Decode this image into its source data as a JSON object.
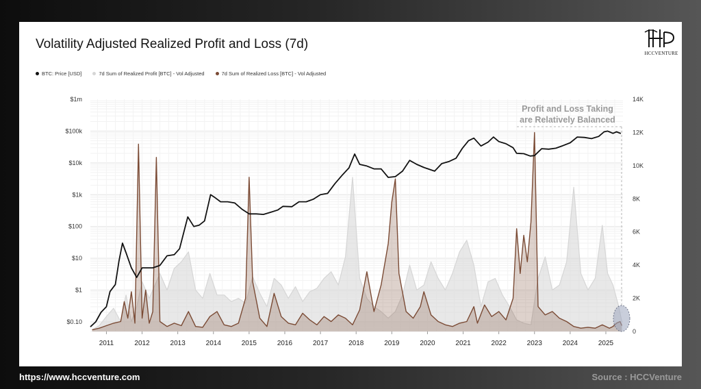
{
  "header": {
    "title": "Volatility Adjusted Realized Profit and Loss (7d)"
  },
  "brand": {
    "logo_text": "HCCVENTURE"
  },
  "legend": {
    "items": [
      {
        "label": "BTC: Price [USD]",
        "color": "#111111"
      },
      {
        "label": "7d Sum of Realized Profit [BTC] - Vol Adjusted",
        "color": "#d6d6d6"
      },
      {
        "label": "7d Sum of Realized Loss [BTC] - Vol Adjusted",
        "color": "#7a4a34"
      }
    ]
  },
  "annotation": {
    "line1": "Profit and Loss Taking",
    "line2": "are Relatively Balanced"
  },
  "footer": {
    "url": "https://www.hccventure.com",
    "source": "Source : HCCVenture"
  },
  "chart_data": {
    "type": "line",
    "title": "Volatility Adjusted Realized Profit and Loss (7d)",
    "x_range": [
      2010.55,
      2025.48
    ],
    "x_ticks": [
      2011,
      2012,
      2013,
      2014,
      2015,
      2016,
      2017,
      2018,
      2019,
      2020,
      2021,
      2022,
      2023,
      2024,
      2025
    ],
    "x_tick_labels": [
      "2011",
      "2012",
      "2013",
      "2014",
      "2015",
      "2016",
      "2017",
      "2018",
      "2019",
      "2020",
      "2021",
      "2022",
      "2023",
      "2024",
      "2025"
    ],
    "y_left": {
      "scale": "log",
      "range": [
        0.05,
        1000000
      ],
      "ticks": [
        0.1,
        1,
        10,
        100,
        1000,
        10000,
        100000,
        1000000
      ],
      "tick_labels": [
        "$0.10",
        "$1",
        "$10",
        "$100",
        "$1k",
        "$10k",
        "$100k",
        "$1m"
      ]
    },
    "y_right": {
      "scale": "linear",
      "range": [
        0,
        14000
      ],
      "ticks": [
        0,
        2000,
        4000,
        6000,
        8000,
        10000,
        12000,
        14000
      ],
      "tick_labels": [
        "0",
        "2K",
        "4K",
        "6K",
        "8K",
        "10K",
        "12K",
        "14K"
      ]
    },
    "grid": true,
    "series": [
      {
        "name": "BTC: Price [USD]",
        "axis": "left",
        "color": "#111111",
        "points": [
          [
            2010.55,
            0.07
          ],
          [
            2010.7,
            0.1
          ],
          [
            2010.85,
            0.2
          ],
          [
            2011.0,
            0.3
          ],
          [
            2011.1,
            0.9
          ],
          [
            2011.25,
            1.5
          ],
          [
            2011.35,
            8
          ],
          [
            2011.45,
            30
          ],
          [
            2011.55,
            15
          ],
          [
            2011.7,
            5
          ],
          [
            2011.85,
            2.5
          ],
          [
            2012.0,
            5
          ],
          [
            2012.3,
            5
          ],
          [
            2012.5,
            6
          ],
          [
            2012.7,
            12
          ],
          [
            2012.9,
            13
          ],
          [
            2013.05,
            20
          ],
          [
            2013.2,
            90
          ],
          [
            2013.28,
            200
          ],
          [
            2013.45,
            100
          ],
          [
            2013.6,
            110
          ],
          [
            2013.75,
            150
          ],
          [
            2013.92,
            1000
          ],
          [
            2014.05,
            800
          ],
          [
            2014.2,
            600
          ],
          [
            2014.4,
            600
          ],
          [
            2014.6,
            550
          ],
          [
            2014.8,
            350
          ],
          [
            2015.0,
            250
          ],
          [
            2015.2,
            250
          ],
          [
            2015.4,
            240
          ],
          [
            2015.6,
            280
          ],
          [
            2015.8,
            330
          ],
          [
            2015.95,
            430
          ],
          [
            2016.2,
            420
          ],
          [
            2016.4,
            600
          ],
          [
            2016.6,
            600
          ],
          [
            2016.8,
            720
          ],
          [
            2017.0,
            1000
          ],
          [
            2017.2,
            1100
          ],
          [
            2017.4,
            2200
          ],
          [
            2017.6,
            4000
          ],
          [
            2017.8,
            7000
          ],
          [
            2017.96,
            19000
          ],
          [
            2018.1,
            9000
          ],
          [
            2018.3,
            8000
          ],
          [
            2018.5,
            6500
          ],
          [
            2018.7,
            6500
          ],
          [
            2018.9,
            3500
          ],
          [
            2019.1,
            3700
          ],
          [
            2019.3,
            5500
          ],
          [
            2019.5,
            12000
          ],
          [
            2019.7,
            9000
          ],
          [
            2019.9,
            7200
          ],
          [
            2020.2,
            5500
          ],
          [
            2020.4,
            9500
          ],
          [
            2020.6,
            11000
          ],
          [
            2020.8,
            14000
          ],
          [
            2020.98,
            29000
          ],
          [
            2021.15,
            50000
          ],
          [
            2021.3,
            60000
          ],
          [
            2021.5,
            34000
          ],
          [
            2021.7,
            45000
          ],
          [
            2021.85,
            65000
          ],
          [
            2022.0,
            47000
          ],
          [
            2022.2,
            40000
          ],
          [
            2022.4,
            30000
          ],
          [
            2022.5,
            20000
          ],
          [
            2022.7,
            19500
          ],
          [
            2022.88,
            16500
          ],
          [
            2023.0,
            17000
          ],
          [
            2023.2,
            28000
          ],
          [
            2023.4,
            27000
          ],
          [
            2023.6,
            29000
          ],
          [
            2023.8,
            35000
          ],
          [
            2024.0,
            43000
          ],
          [
            2024.2,
            65000
          ],
          [
            2024.4,
            63000
          ],
          [
            2024.6,
            58000
          ],
          [
            2024.8,
            68000
          ],
          [
            2024.95,
            95000
          ],
          [
            2025.05,
            100000
          ],
          [
            2025.2,
            85000
          ],
          [
            2025.3,
            95000
          ],
          [
            2025.42,
            84000
          ]
        ]
      },
      {
        "name": "7d Sum of Realized Profit [BTC] - Vol Adjusted",
        "axis": "right",
        "color": "#d6d6d6",
        "points": [
          [
            2010.6,
            100
          ],
          [
            2010.8,
            350
          ],
          [
            2011.0,
            900
          ],
          [
            2011.2,
            1400
          ],
          [
            2011.4,
            600
          ],
          [
            2011.55,
            2200
          ],
          [
            2011.7,
            600
          ],
          [
            2011.85,
            1500
          ],
          [
            2012.0,
            3000
          ],
          [
            2012.2,
            2000
          ],
          [
            2012.5,
            3500
          ],
          [
            2012.7,
            2500
          ],
          [
            2012.9,
            3800
          ],
          [
            2013.1,
            4200
          ],
          [
            2013.3,
            4800
          ],
          [
            2013.5,
            2500
          ],
          [
            2013.7,
            2000
          ],
          [
            2013.9,
            3500
          ],
          [
            2014.1,
            2200
          ],
          [
            2014.3,
            2200
          ],
          [
            2014.5,
            1800
          ],
          [
            2014.7,
            2000
          ],
          [
            2014.9,
            1700
          ],
          [
            2015.1,
            3300
          ],
          [
            2015.3,
            2300
          ],
          [
            2015.5,
            1500
          ],
          [
            2015.7,
            3200
          ],
          [
            2015.9,
            2800
          ],
          [
            2016.1,
            2000
          ],
          [
            2016.3,
            2700
          ],
          [
            2016.5,
            1800
          ],
          [
            2016.7,
            2400
          ],
          [
            2016.9,
            2600
          ],
          [
            2017.1,
            3200
          ],
          [
            2017.3,
            3600
          ],
          [
            2017.5,
            2800
          ],
          [
            2017.7,
            4500
          ],
          [
            2017.9,
            9300
          ],
          [
            2018.1,
            3200
          ],
          [
            2018.3,
            2000
          ],
          [
            2018.5,
            1500
          ],
          [
            2018.7,
            1200
          ],
          [
            2018.9,
            800
          ],
          [
            2019.1,
            1200
          ],
          [
            2019.3,
            2200
          ],
          [
            2019.5,
            4000
          ],
          [
            2019.7,
            2500
          ],
          [
            2019.9,
            2800
          ],
          [
            2020.1,
            4200
          ],
          [
            2020.3,
            3200
          ],
          [
            2020.5,
            2500
          ],
          [
            2020.7,
            3500
          ],
          [
            2020.9,
            4800
          ],
          [
            2021.1,
            5500
          ],
          [
            2021.3,
            4000
          ],
          [
            2021.5,
            1500
          ],
          [
            2021.7,
            3000
          ],
          [
            2021.9,
            3200
          ],
          [
            2022.1,
            2200
          ],
          [
            2022.3,
            1500
          ],
          [
            2022.5,
            700
          ],
          [
            2022.7,
            500
          ],
          [
            2022.9,
            400
          ],
          [
            2023.1,
            3200
          ],
          [
            2023.3,
            4500
          ],
          [
            2023.5,
            2500
          ],
          [
            2023.7,
            2800
          ],
          [
            2023.9,
            4200
          ],
          [
            2024.1,
            8700
          ],
          [
            2024.3,
            3500
          ],
          [
            2024.5,
            2500
          ],
          [
            2024.7,
            3200
          ],
          [
            2024.9,
            6400
          ],
          [
            2025.05,
            3500
          ],
          [
            2025.2,
            2800
          ],
          [
            2025.35,
            1600
          ],
          [
            2025.45,
            600
          ]
        ]
      },
      {
        "name": "7d Sum of Realized Loss [BTC] - Vol Adjusted",
        "axis": "right",
        "color": "#7a4a34",
        "points": [
          [
            2010.6,
            100
          ],
          [
            2010.8,
            200
          ],
          [
            2011.0,
            350
          ],
          [
            2011.2,
            500
          ],
          [
            2011.4,
            600
          ],
          [
            2011.5,
            1800
          ],
          [
            2011.6,
            800
          ],
          [
            2011.7,
            2400
          ],
          [
            2011.8,
            500
          ],
          [
            2011.9,
            11300
          ],
          [
            2012.0,
            800
          ],
          [
            2012.1,
            2500
          ],
          [
            2012.2,
            500
          ],
          [
            2012.3,
            1200
          ],
          [
            2012.4,
            10500
          ],
          [
            2012.5,
            600
          ],
          [
            2012.7,
            300
          ],
          [
            2012.9,
            500
          ],
          [
            2013.1,
            350
          ],
          [
            2013.3,
            1200
          ],
          [
            2013.5,
            300
          ],
          [
            2013.7,
            250
          ],
          [
            2013.9,
            900
          ],
          [
            2014.1,
            1200
          ],
          [
            2014.3,
            400
          ],
          [
            2014.5,
            300
          ],
          [
            2014.7,
            500
          ],
          [
            2014.9,
            2000
          ],
          [
            2015.0,
            9300
          ],
          [
            2015.1,
            3000
          ],
          [
            2015.3,
            800
          ],
          [
            2015.5,
            300
          ],
          [
            2015.7,
            2300
          ],
          [
            2015.9,
            900
          ],
          [
            2016.1,
            500
          ],
          [
            2016.3,
            400
          ],
          [
            2016.5,
            1100
          ],
          [
            2016.7,
            700
          ],
          [
            2016.9,
            400
          ],
          [
            2017.1,
            900
          ],
          [
            2017.3,
            600
          ],
          [
            2017.5,
            1000
          ],
          [
            2017.7,
            800
          ],
          [
            2017.9,
            400
          ],
          [
            2018.1,
            1300
          ],
          [
            2018.3,
            3600
          ],
          [
            2018.5,
            1200
          ],
          [
            2018.7,
            2800
          ],
          [
            2018.9,
            5300
          ],
          [
            2019.0,
            7800
          ],
          [
            2019.1,
            9200
          ],
          [
            2019.2,
            3500
          ],
          [
            2019.4,
            1200
          ],
          [
            2019.6,
            800
          ],
          [
            2019.8,
            1500
          ],
          [
            2019.9,
            2400
          ],
          [
            2020.1,
            1000
          ],
          [
            2020.3,
            600
          ],
          [
            2020.5,
            400
          ],
          [
            2020.7,
            300
          ],
          [
            2020.9,
            500
          ],
          [
            2021.1,
            600
          ],
          [
            2021.3,
            1500
          ],
          [
            2021.4,
            500
          ],
          [
            2021.6,
            1600
          ],
          [
            2021.8,
            900
          ],
          [
            2022.0,
            1200
          ],
          [
            2022.2,
            700
          ],
          [
            2022.4,
            2000
          ],
          [
            2022.5,
            6200
          ],
          [
            2022.6,
            3500
          ],
          [
            2022.7,
            5800
          ],
          [
            2022.8,
            4200
          ],
          [
            2022.9,
            6600
          ],
          [
            2023.0,
            12000
          ],
          [
            2023.1,
            1500
          ],
          [
            2023.3,
            1000
          ],
          [
            2023.5,
            1200
          ],
          [
            2023.7,
            800
          ],
          [
            2023.9,
            600
          ],
          [
            2024.1,
            300
          ],
          [
            2024.3,
            200
          ],
          [
            2024.5,
            250
          ],
          [
            2024.7,
            200
          ],
          [
            2024.9,
            400
          ],
          [
            2025.1,
            200
          ],
          [
            2025.2,
            300
          ],
          [
            2025.3,
            500
          ],
          [
            2025.4,
            600
          ],
          [
            2025.45,
            350
          ]
        ]
      }
    ]
  }
}
